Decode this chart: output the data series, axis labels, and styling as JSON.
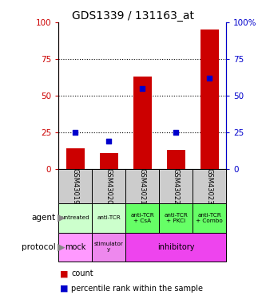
{
  "title": "GDS1339 / 131163_at",
  "samples": [
    "GSM43019",
    "GSM43020",
    "GSM43021",
    "GSM43022",
    "GSM43023"
  ],
  "counts": [
    14,
    11,
    63,
    13,
    95
  ],
  "percentiles": [
    25,
    19,
    55,
    25,
    62
  ],
  "bar_color": "#cc0000",
  "dot_color": "#0000cc",
  "ylim": [
    0,
    100
  ],
  "yticks": [
    0,
    25,
    50,
    75,
    100
  ],
  "agent_labels": [
    "untreated",
    "anti-TCR",
    "anti-TCR\n+ CsA",
    "anti-TCR\n+ PKCi",
    "anti-TCR\n+ Combo"
  ],
  "agent_colors_list": [
    "#ccffcc",
    "#ccffcc",
    "#66ff66",
    "#66ff66",
    "#66ff66"
  ],
  "proto_groups": [
    [
      0,
      1,
      "#ff99ff",
      "mock"
    ],
    [
      1,
      2,
      "#ee88ee",
      "stimulator\ny"
    ],
    [
      2,
      5,
      "#ee44ee",
      "inhibitory"
    ]
  ],
  "legend_count_color": "#cc0000",
  "legend_pct_color": "#0000cc",
  "left_axis_color": "#cc0000",
  "right_axis_color": "#0000cc",
  "sample_bg_color": "#cccccc",
  "title_fontsize": 10,
  "bar_width": 0.55
}
